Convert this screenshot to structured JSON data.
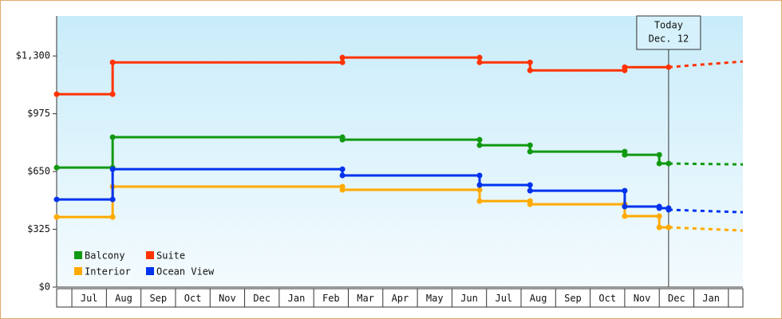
{
  "chart_data": {
    "type": "step",
    "categories": [
      "Jul",
      "Aug",
      "Sep",
      "Oct",
      "Nov",
      "Dec",
      "Jan",
      "Feb",
      "Mar",
      "Apr",
      "May",
      "Jun",
      "Jul",
      "Aug",
      "Sep",
      "Oct",
      "Nov",
      "Dec",
      "Jan"
    ],
    "xlim": [
      -0.44,
      19.42
    ],
    "ylim": [
      0,
      1525
    ],
    "yticks": [
      {
        "value": 0,
        "label": "$0"
      },
      {
        "value": 325,
        "label": "$325"
      },
      {
        "value": 650,
        "label": "$650"
      },
      {
        "value": 975,
        "label": "$975"
      },
      {
        "value": 1300,
        "label": "$1,300"
      }
    ],
    "today": {
      "x": 17.27,
      "label": [
        "Today",
        "Dec. 12"
      ]
    },
    "legend": "bottom-left",
    "series": [
      {
        "name": "Balcony",
        "color": "#119911",
        "x": [
          -0.44,
          1.18,
          7.83,
          11.8,
          13.26,
          16.0,
          17.0,
          17.27
        ],
        "values": [
          672,
          843,
          829,
          798,
          762,
          744,
          695,
          695
        ],
        "projection_x": 19.42,
        "projection": 690
      },
      {
        "name": "Suite",
        "color": "#ff3300",
        "x": [
          -0.44,
          1.18,
          7.83,
          11.8,
          13.26,
          16.0,
          17.27
        ],
        "values": [
          1085,
          1264,
          1291,
          1264,
          1219,
          1237,
          1237
        ],
        "projection_x": 19.42,
        "projection": 1269
      },
      {
        "name": "Interior",
        "color": "#ffaa00",
        "x": [
          -0.44,
          1.18,
          7.83,
          11.8,
          13.26,
          16.0,
          17.0,
          17.27
        ],
        "values": [
          394,
          565,
          547,
          484,
          466,
          399,
          336,
          336
        ],
        "projection_x": 19.42,
        "projection": 318
      },
      {
        "name": "Ocean View",
        "color": "#0033ee",
        "x": [
          -0.44,
          1.18,
          7.83,
          11.8,
          13.26,
          16.0,
          17.0,
          17.27
        ],
        "values": [
          493,
          663,
          628,
          574,
          542,
          453,
          444,
          435
        ],
        "projection_x": 19.42,
        "projection": 421
      }
    ]
  }
}
